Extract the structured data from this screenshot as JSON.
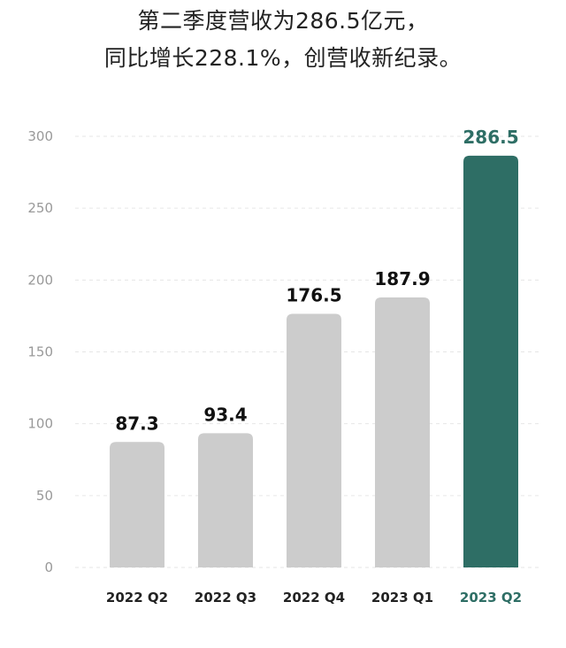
{
  "headline": {
    "line1": "第二季度营收为286.5亿元，",
    "line2": "同比增长228.1%，创营收新纪录。"
  },
  "chart_data": {
    "type": "bar",
    "title": "",
    "xlabel": "",
    "ylabel": "",
    "ylim": [
      0,
      300
    ],
    "yticks": [
      0,
      50,
      100,
      150,
      200,
      250,
      300
    ],
    "grid": true,
    "categories": [
      "2022 Q2",
      "2022 Q3",
      "2022 Q4",
      "2023 Q1",
      "2023 Q2"
    ],
    "values": [
      87.3,
      93.4,
      176.5,
      187.9,
      286.5
    ],
    "value_labels": [
      "87.3",
      "93.4",
      "176.5",
      "187.9",
      "286.5"
    ],
    "highlight_index": 4,
    "colors": {
      "bar": "#cccccc",
      "highlight": "#2e6e65",
      "axis_text": "#999999",
      "label_text": "#111111",
      "grid": "#e6e6e6"
    }
  }
}
